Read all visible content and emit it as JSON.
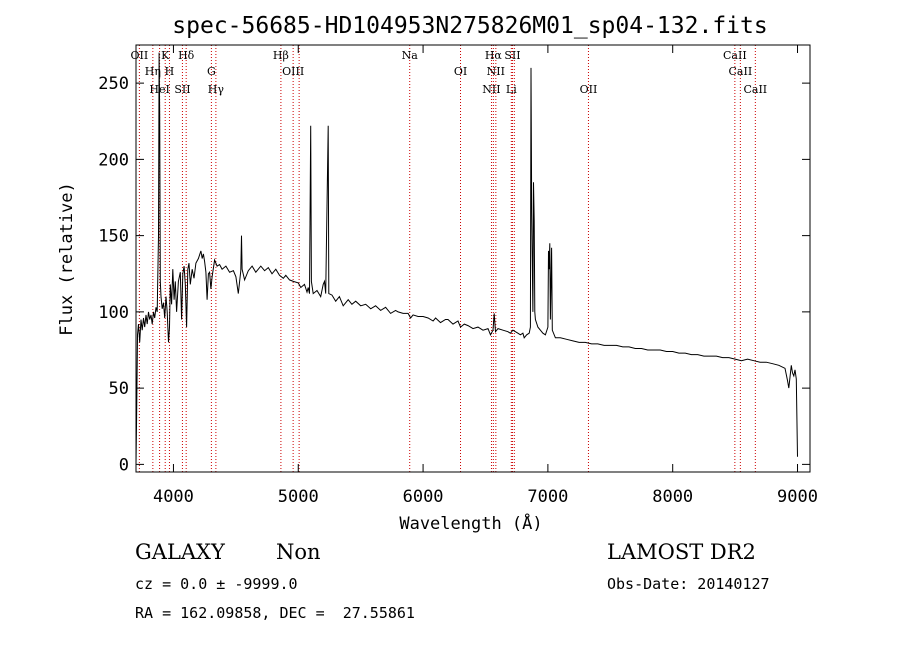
{
  "chart_data": {
    "type": "line",
    "title": "spec-56685-HD104953N275826M01_sp04-132.fits",
    "xlabel": "Wavelength (Å)",
    "ylabel": "Flux (relative)",
    "xlim": [
      3700,
      9100
    ],
    "ylim": [
      -5,
      275
    ],
    "xticks": [
      4000,
      5000,
      6000,
      7000,
      8000,
      9000
    ],
    "yticks": [
      0,
      50,
      100,
      150,
      200,
      250
    ],
    "grid": false,
    "line_color": "#000000",
    "marker_color": "#cc0000",
    "series": [
      {
        "values": [
          [
            3700,
            0
          ],
          [
            3705,
            30
          ],
          [
            3712,
            85
          ],
          [
            3720,
            92
          ],
          [
            3730,
            80
          ],
          [
            3740,
            95
          ],
          [
            3750,
            88
          ],
          [
            3760,
            96
          ],
          [
            3770,
            90
          ],
          [
            3780,
            98
          ],
          [
            3790,
            92
          ],
          [
            3800,
            100
          ],
          [
            3810,
            95
          ],
          [
            3820,
            98
          ],
          [
            3830,
            92
          ],
          [
            3840,
            100
          ],
          [
            3850,
            96
          ],
          [
            3860,
            103
          ],
          [
            3870,
            100
          ],
          [
            3880,
            150
          ],
          [
            3885,
            270
          ],
          [
            3890,
            230
          ],
          [
            3895,
            120
          ],
          [
            3900,
            110
          ],
          [
            3910,
            102
          ],
          [
            3920,
            106
          ],
          [
            3930,
            96
          ],
          [
            3940,
            110
          ],
          [
            3950,
            100
          ],
          [
            3960,
            80
          ],
          [
            3968,
            90
          ],
          [
            3975,
            118
          ],
          [
            3985,
            105
          ],
          [
            3995,
            128
          ],
          [
            4005,
            108
          ],
          [
            4015,
            120
          ],
          [
            4025,
            100
          ],
          [
            4040,
            120
          ],
          [
            4055,
            126
          ],
          [
            4065,
            95
          ],
          [
            4075,
            125
          ],
          [
            4085,
            130
          ],
          [
            4095,
            118
          ],
          [
            4105,
            90
          ],
          [
            4115,
            128
          ],
          [
            4125,
            132
          ],
          [
            4135,
            118
          ],
          [
            4150,
            128
          ],
          [
            4165,
            122
          ],
          [
            4180,
            132
          ],
          [
            4200,
            135
          ],
          [
            4220,
            140
          ],
          [
            4230,
            135
          ],
          [
            4240,
            138
          ],
          [
            4250,
            133
          ],
          [
            4260,
            126
          ],
          [
            4270,
            108
          ],
          [
            4280,
            125
          ],
          [
            4290,
            126
          ],
          [
            4300,
            115
          ],
          [
            4310,
            123
          ],
          [
            4330,
            134
          ],
          [
            4350,
            130
          ],
          [
            4370,
            131
          ],
          [
            4390,
            128
          ],
          [
            4420,
            130
          ],
          [
            4450,
            126
          ],
          [
            4480,
            127
          ],
          [
            4500,
            123
          ],
          [
            4520,
            112
          ],
          [
            4540,
            127
          ],
          [
            4545,
            150
          ],
          [
            4550,
            128
          ],
          [
            4570,
            121
          ],
          [
            4600,
            127
          ],
          [
            4630,
            130
          ],
          [
            4660,
            126
          ],
          [
            4700,
            130
          ],
          [
            4730,
            127
          ],
          [
            4760,
            129
          ],
          [
            4790,
            125
          ],
          [
            4820,
            128
          ],
          [
            4850,
            124
          ],
          [
            4880,
            122
          ],
          [
            4900,
            124
          ],
          [
            4930,
            121
          ],
          [
            4960,
            120
          ],
          [
            5000,
            119
          ],
          [
            5020,
            116
          ],
          [
            5050,
            118
          ],
          [
            5070,
            113
          ],
          [
            5080,
            116
          ],
          [
            5090,
            112
          ],
          [
            5100,
            222
          ],
          [
            5105,
            120
          ],
          [
            5120,
            112
          ],
          [
            5150,
            114
          ],
          [
            5180,
            110
          ],
          [
            5200,
            118
          ],
          [
            5210,
            120
          ],
          [
            5220,
            112
          ],
          [
            5240,
            222
          ],
          [
            5245,
            112
          ],
          [
            5270,
            111
          ],
          [
            5300,
            107
          ],
          [
            5330,
            110
          ],
          [
            5360,
            104
          ],
          [
            5400,
            108
          ],
          [
            5430,
            105
          ],
          [
            5460,
            107
          ],
          [
            5500,
            104
          ],
          [
            5540,
            105
          ],
          [
            5580,
            102
          ],
          [
            5620,
            104
          ],
          [
            5660,
            101
          ],
          [
            5700,
            103
          ],
          [
            5740,
            99
          ],
          [
            5780,
            101
          ],
          [
            5800,
            100
          ],
          [
            5840,
            99
          ],
          [
            5880,
            99
          ],
          [
            5900,
            96
          ],
          [
            5920,
            98
          ],
          [
            5960,
            97
          ],
          [
            6000,
            97
          ],
          [
            6040,
            96
          ],
          [
            6080,
            94
          ],
          [
            6100,
            96
          ],
          [
            6140,
            93
          ],
          [
            6180,
            95
          ],
          [
            6200,
            95
          ],
          [
            6240,
            92
          ],
          [
            6280,
            94
          ],
          [
            6300,
            90
          ],
          [
            6330,
            92
          ],
          [
            6360,
            91
          ],
          [
            6400,
            89
          ],
          [
            6440,
            90
          ],
          [
            6480,
            88
          ],
          [
            6520,
            89
          ],
          [
            6540,
            85
          ],
          [
            6560,
            88
          ],
          [
            6570,
            99
          ],
          [
            6580,
            87
          ],
          [
            6600,
            89
          ],
          [
            6640,
            88
          ],
          [
            6680,
            87
          ],
          [
            6700,
            86
          ],
          [
            6720,
            88
          ],
          [
            6740,
            87
          ],
          [
            6760,
            86
          ],
          [
            6780,
            85
          ],
          [
            6800,
            86
          ],
          [
            6810,
            83
          ],
          [
            6830,
            85
          ],
          [
            6850,
            86
          ],
          [
            6860,
            90
          ],
          [
            6865,
            260
          ],
          [
            6870,
            165
          ],
          [
            6880,
            100
          ],
          [
            6885,
            185
          ],
          [
            6890,
            160
          ],
          [
            6895,
            100
          ],
          [
            6900,
            95
          ],
          [
            6920,
            90
          ],
          [
            6940,
            88
          ],
          [
            6960,
            86
          ],
          [
            6980,
            85
          ],
          [
            7000,
            90
          ],
          [
            7005,
            140
          ],
          [
            7010,
            128
          ],
          [
            7015,
            145
          ],
          [
            7020,
            95
          ],
          [
            7030,
            142
          ],
          [
            7035,
            88
          ],
          [
            7060,
            83
          ],
          [
            7100,
            83
          ],
          [
            7150,
            82
          ],
          [
            7200,
            81
          ],
          [
            7250,
            80
          ],
          [
            7300,
            80
          ],
          [
            7350,
            79
          ],
          [
            7400,
            79
          ],
          [
            7450,
            78
          ],
          [
            7500,
            78
          ],
          [
            7550,
            78
          ],
          [
            7600,
            77
          ],
          [
            7650,
            77
          ],
          [
            7700,
            76
          ],
          [
            7750,
            76
          ],
          [
            7800,
            75
          ],
          [
            7850,
            75
          ],
          [
            7900,
            75
          ],
          [
            7950,
            74
          ],
          [
            8000,
            74
          ],
          [
            8050,
            73
          ],
          [
            8100,
            73
          ],
          [
            8150,
            72
          ],
          [
            8200,
            72
          ],
          [
            8250,
            71
          ],
          [
            8300,
            71
          ],
          [
            8350,
            71
          ],
          [
            8400,
            70
          ],
          [
            8450,
            70
          ],
          [
            8500,
            69
          ],
          [
            8550,
            68
          ],
          [
            8600,
            69
          ],
          [
            8650,
            68
          ],
          [
            8700,
            67
          ],
          [
            8750,
            67
          ],
          [
            8800,
            66
          ],
          [
            8850,
            65
          ],
          [
            8900,
            63
          ],
          [
            8920,
            55
          ],
          [
            8930,
            50
          ],
          [
            8950,
            65
          ],
          [
            8960,
            60
          ],
          [
            8970,
            58
          ],
          [
            8980,
            62
          ],
          [
            8990,
            56
          ],
          [
            9000,
            5
          ]
        ]
      }
    ],
    "line_markers": [
      {
        "x": 3727,
        "label": "OII"
      },
      {
        "x": 3835,
        "label": "Hη"
      },
      {
        "x": 3889,
        "label": "HeI"
      },
      {
        "x": 3934,
        "label": "K"
      },
      {
        "x": 3968,
        "label": "H"
      },
      {
        "x": 4072,
        "label": "SII"
      },
      {
        "x": 4102,
        "label": "Hδ"
      },
      {
        "x": 4304,
        "label": "G"
      },
      {
        "x": 4340,
        "label": "Hγ"
      },
      {
        "x": 4861,
        "label": "Hβ"
      },
      {
        "x": 4959,
        "label": "OIII"
      },
      {
        "x": 5007,
        "label": ""
      },
      {
        "x": 5893,
        "label": "Na"
      },
      {
        "x": 6300,
        "label": "OI"
      },
      {
        "x": 6548,
        "label": "NII"
      },
      {
        "x": 6563,
        "label": "Hα"
      },
      {
        "x": 6583,
        "label": "NII"
      },
      {
        "x": 6707,
        "label": "Li"
      },
      {
        "x": 6716,
        "label": "SII"
      },
      {
        "x": 6731,
        "label": ""
      },
      {
        "x": 7325,
        "label": "OII"
      },
      {
        "x": 8498,
        "label": "CaII"
      },
      {
        "x": 8542,
        "label": "CaII"
      },
      {
        "x": 8662,
        "label": "CaII"
      }
    ]
  },
  "footer": {
    "class_label": "GALAXY",
    "subclass_label": "Non",
    "cz_text": "cz = 0.0 ± -9999.0",
    "coords_text": "RA = 162.09858, DEC =  27.55861",
    "survey_label": "LAMOST DR2",
    "obs_date_text": "Obs-Date: 20140127"
  }
}
